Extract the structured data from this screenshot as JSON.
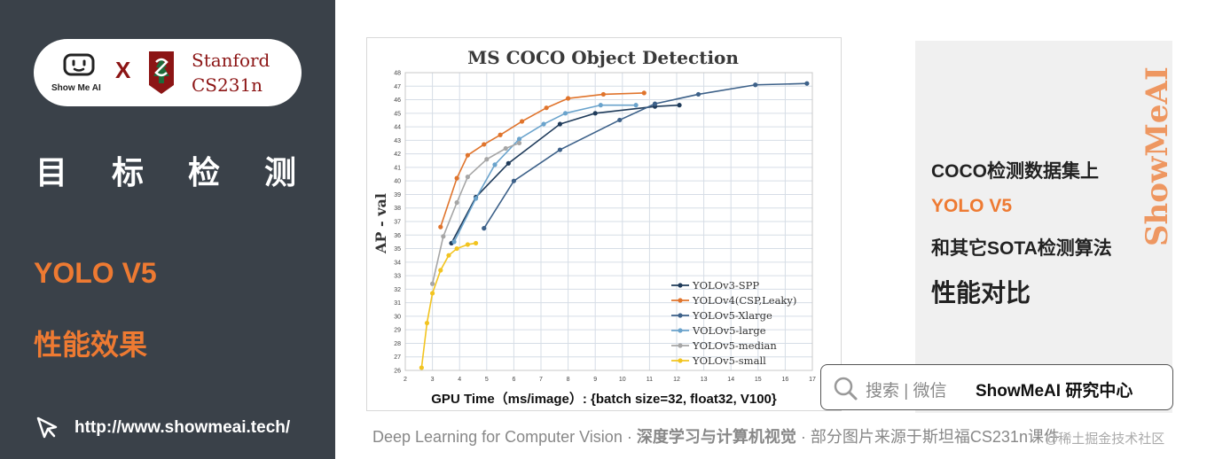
{
  "left_panel": {
    "brand_name": "Show Me AI",
    "times_sign": "X",
    "university": "Stanford",
    "course": "CS231n",
    "topic": "目标检测",
    "subtitle_model": "YOLO V5",
    "subtitle_desc": "性能效果",
    "site_url": "http://www.showmeai.tech/"
  },
  "right_panel": {
    "line1": "COCO检测数据集上",
    "line2": "YOLO V5",
    "line3": "和其它SOTA检测算法",
    "line4": "性能对比",
    "watermark": "ShowMeAI"
  },
  "search_box": {
    "placeholder": "搜索 | 微信",
    "brand": "ShowMeAI 研究中心"
  },
  "footer": {
    "course_en": "Deep Learning for Computer Vision",
    "sep": "·",
    "course_zh": "深度学习与计算机视觉",
    "source": "部分图片来源于斯坦福CS231n课件",
    "credit": "@稀土掘金技术社区"
  },
  "colors": {
    "left_bg": "#3a4149",
    "accent_orange": "#ee7a32",
    "stanford_red": "#8c1515"
  },
  "chart_data": {
    "type": "line",
    "title": "MS COCO Object Detection",
    "xlabel": "GPU Time（ms/image）: {batch size=32, float32, V100}",
    "ylabel": "AP - val",
    "xlim": [
      2,
      17
    ],
    "ylim": [
      26,
      48
    ],
    "x_ticks": [
      2,
      3,
      4,
      5,
      6,
      7,
      8,
      9,
      10,
      11,
      12,
      13,
      14,
      15,
      16,
      17
    ],
    "y_ticks": [
      26,
      27,
      28,
      29,
      30,
      31,
      32,
      33,
      34,
      35,
      36,
      37,
      38,
      39,
      40,
      41,
      42,
      43,
      44,
      45,
      46,
      47,
      48
    ],
    "grid": true,
    "legend_position": "bottom-right",
    "series": [
      {
        "name": "YOLOv3-SPP",
        "color": "#1f3b5a",
        "points": [
          [
            3.7,
            35.4
          ],
          [
            4.6,
            38.8
          ],
          [
            5.8,
            41.3
          ],
          [
            7.7,
            44.2
          ],
          [
            9.0,
            45.0
          ],
          [
            11.2,
            45.5
          ],
          [
            12.1,
            45.6
          ]
        ]
      },
      {
        "name": "YOLOv4(CSP,Leaky)",
        "color": "#e0742c",
        "points": [
          [
            3.3,
            36.6
          ],
          [
            3.9,
            40.2
          ],
          [
            4.3,
            41.9
          ],
          [
            4.9,
            42.7
          ],
          [
            5.5,
            43.4
          ],
          [
            6.3,
            44.4
          ],
          [
            7.2,
            45.4
          ],
          [
            8.0,
            46.1
          ],
          [
            9.3,
            46.4
          ],
          [
            10.8,
            46.5
          ]
        ]
      },
      {
        "name": "YOLOv5-Xlarge",
        "color": "#3d6189",
        "points": [
          [
            4.9,
            36.5
          ],
          [
            6.0,
            40.0
          ],
          [
            7.7,
            42.3
          ],
          [
            9.9,
            44.5
          ],
          [
            11.2,
            45.7
          ],
          [
            12.8,
            46.4
          ],
          [
            14.9,
            47.1
          ],
          [
            16.8,
            47.2
          ]
        ]
      },
      {
        "name": "VOLOv5-large",
        "color": "#6aa3cc",
        "points": [
          [
            3.8,
            35.5
          ],
          [
            4.6,
            38.7
          ],
          [
            5.3,
            41.2
          ],
          [
            6.2,
            43.1
          ],
          [
            7.1,
            44.2
          ],
          [
            7.9,
            45.0
          ],
          [
            9.2,
            45.6
          ],
          [
            10.5,
            45.6
          ]
        ]
      },
      {
        "name": "YOLOv5-median",
        "color": "#a6a6a6",
        "points": [
          [
            3.0,
            32.4
          ],
          [
            3.4,
            35.9
          ],
          [
            3.9,
            38.4
          ],
          [
            4.3,
            40.3
          ],
          [
            5.0,
            41.6
          ],
          [
            5.7,
            42.4
          ],
          [
            6.2,
            42.8
          ]
        ]
      },
      {
        "name": "YOLOv5-small",
        "color": "#f2c420",
        "points": [
          [
            2.6,
            26.2
          ],
          [
            2.8,
            29.5
          ],
          [
            3.0,
            31.7
          ],
          [
            3.3,
            33.4
          ],
          [
            3.6,
            34.5
          ],
          [
            3.9,
            35.0
          ],
          [
            4.3,
            35.3
          ],
          [
            4.6,
            35.4
          ]
        ]
      }
    ]
  }
}
